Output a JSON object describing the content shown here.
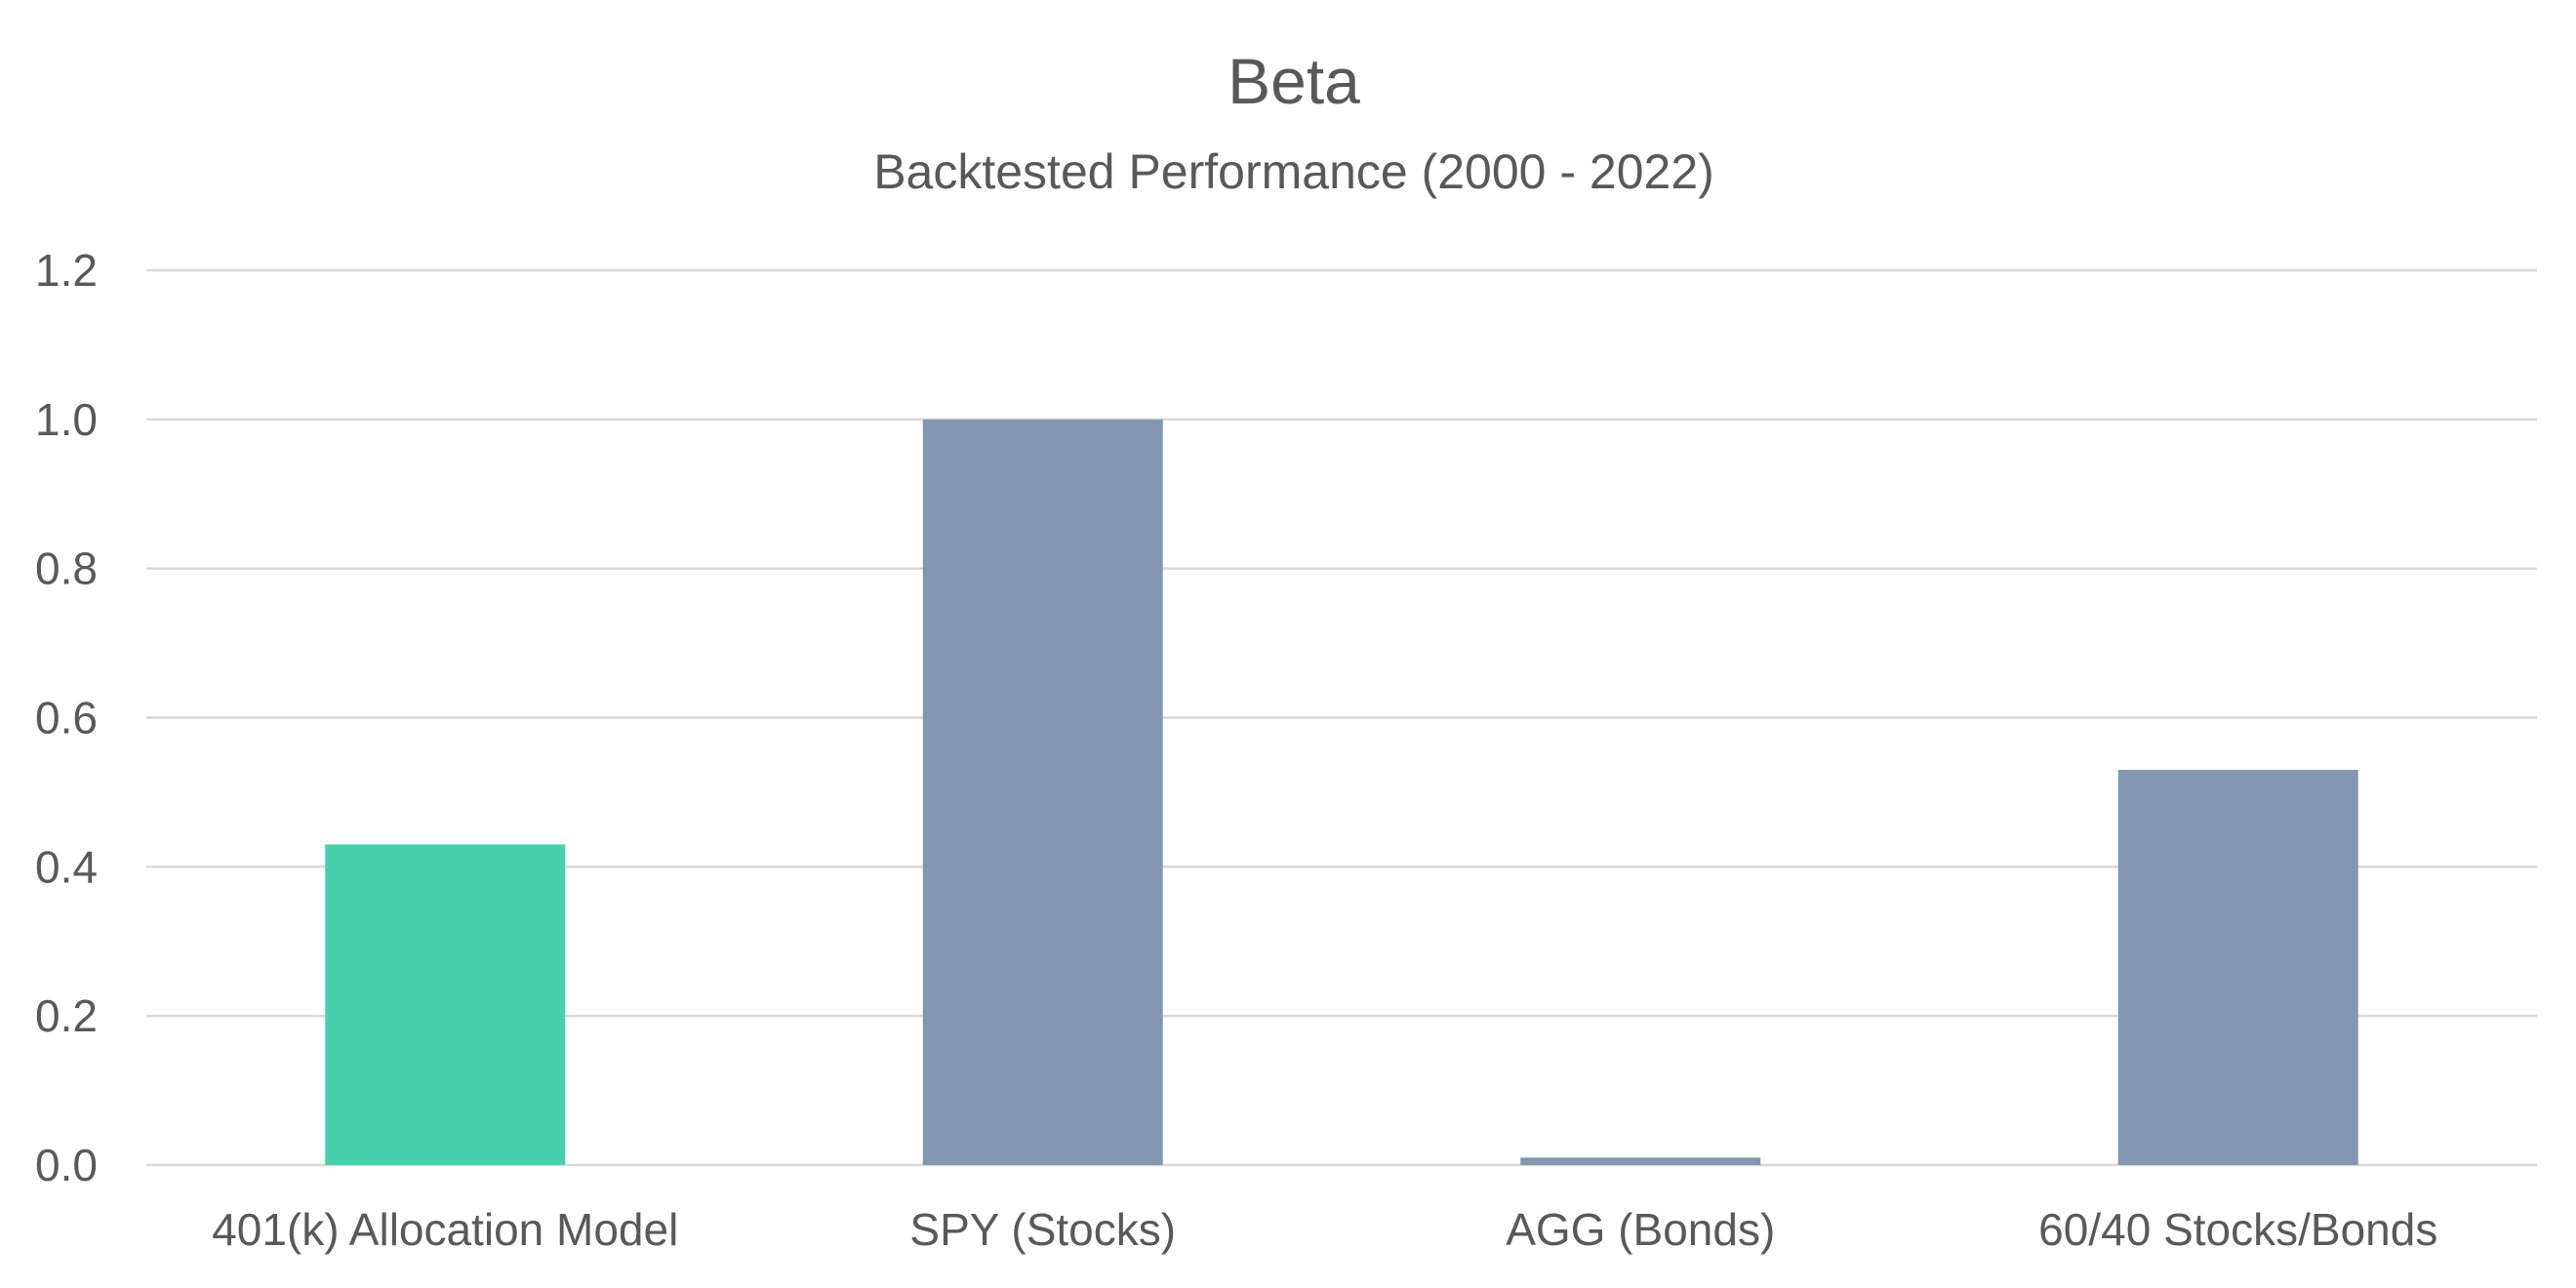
{
  "chart_data": {
    "type": "bar",
    "title": "Beta",
    "subtitle": "Backtested Performance (2000 - 2022)",
    "categories": [
      "401(k) Allocation Model",
      "SPY (Stocks)",
      "AGG (Bonds)",
      "60/40 Stocks/Bonds"
    ],
    "values": [
      0.43,
      1.0,
      0.01,
      0.53
    ],
    "bar_colors": [
      "#48d0ac",
      "#8497b0",
      "#8497b0",
      "#8497b0"
    ],
    "ylim": [
      0,
      1.2
    ],
    "yticks": [
      "0.0",
      "0.2",
      "0.4",
      "0.6",
      "0.8",
      "1.0",
      "1.2"
    ],
    "xlabel": "",
    "ylabel": "",
    "grid": true,
    "legend": "none"
  }
}
